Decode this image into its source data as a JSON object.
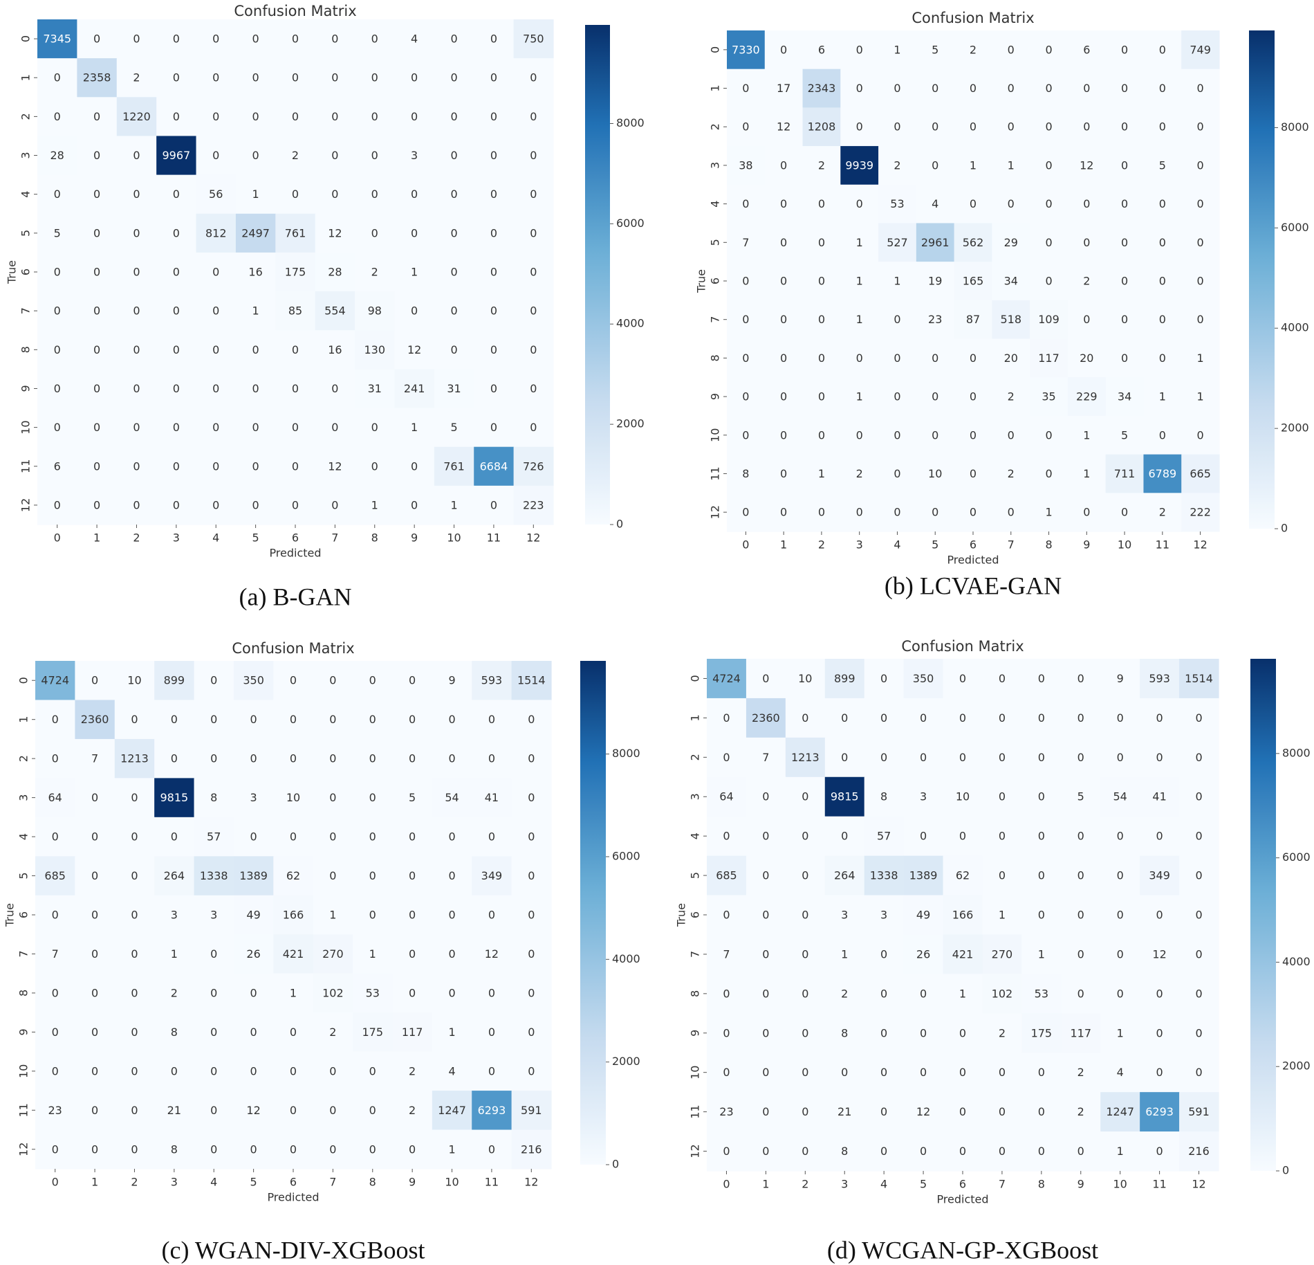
{
  "colors": {
    "low": "#f7fbff",
    "mid1": "#c6dbef",
    "mid2": "#6baed6",
    "mid3": "#2171b5",
    "high": "#08306b",
    "text_dark": "#333333",
    "text_light": "#ffffff"
  },
  "chart_data": [
    {
      "type": "heatmap",
      "caption": "(a) B-GAN",
      "title": "Confusion Matrix",
      "xlabel": "Predicted",
      "ylabel": "True",
      "labels": [
        "0",
        "1",
        "2",
        "3",
        "4",
        "5",
        "6",
        "7",
        "8",
        "9",
        "10",
        "11",
        "12"
      ],
      "vmin": 0,
      "vmax": 9967,
      "colorbar_ticks": [
        0,
        2000,
        4000,
        6000,
        8000
      ],
      "colorbar_tick_labels": [
        "0",
        "2000",
        "4000",
        "6000",
        "8000"
      ],
      "matrix": [
        [
          7345,
          0,
          0,
          0,
          0,
          0,
          0,
          0,
          0,
          4,
          0,
          0,
          750
        ],
        [
          0,
          2358,
          2,
          0,
          0,
          0,
          0,
          0,
          0,
          0,
          0,
          0,
          0
        ],
        [
          0,
          0,
          1220,
          0,
          0,
          0,
          0,
          0,
          0,
          0,
          0,
          0,
          0
        ],
        [
          28,
          0,
          0,
          9967,
          0,
          0,
          2,
          0,
          0,
          3,
          0,
          0,
          0
        ],
        [
          0,
          0,
          0,
          0,
          56,
          1,
          0,
          0,
          0,
          0,
          0,
          0,
          0
        ],
        [
          5,
          0,
          0,
          0,
          812,
          2497,
          761,
          12,
          0,
          0,
          0,
          0,
          0
        ],
        [
          0,
          0,
          0,
          0,
          0,
          16,
          175,
          28,
          2,
          1,
          0,
          0,
          0
        ],
        [
          0,
          0,
          0,
          0,
          0,
          1,
          85,
          554,
          98,
          0,
          0,
          0,
          0
        ],
        [
          0,
          0,
          0,
          0,
          0,
          0,
          0,
          16,
          130,
          12,
          0,
          0,
          0
        ],
        [
          0,
          0,
          0,
          0,
          0,
          0,
          0,
          0,
          31,
          241,
          31,
          0,
          0
        ],
        [
          0,
          0,
          0,
          0,
          0,
          0,
          0,
          0,
          0,
          1,
          5,
          0,
          0
        ],
        [
          6,
          0,
          0,
          0,
          0,
          0,
          0,
          12,
          0,
          0,
          761,
          6684,
          726
        ],
        [
          0,
          0,
          0,
          0,
          0,
          0,
          0,
          0,
          1,
          0,
          1,
          0,
          223
        ]
      ]
    },
    {
      "type": "heatmap",
      "caption": "(b) LCVAE-GAN",
      "title": "Confusion Matrix",
      "xlabel": "Predicted",
      "ylabel": "True",
      "labels": [
        "0",
        "1",
        "2",
        "3",
        "4",
        "5",
        "6",
        "7",
        "8",
        "9",
        "10",
        "11",
        "12"
      ],
      "vmin": 0,
      "vmax": 9939,
      "colorbar_ticks": [
        0,
        2000,
        4000,
        6000,
        8000
      ],
      "colorbar_tick_labels": [
        "0",
        "2000",
        "4000",
        "6000",
        "8000"
      ],
      "matrix": [
        [
          7330,
          0,
          6,
          0,
          1,
          5,
          2,
          0,
          0,
          6,
          0,
          0,
          749
        ],
        [
          0,
          17,
          2343,
          0,
          0,
          0,
          0,
          0,
          0,
          0,
          0,
          0,
          0
        ],
        [
          0,
          12,
          1208,
          0,
          0,
          0,
          0,
          0,
          0,
          0,
          0,
          0,
          0
        ],
        [
          38,
          0,
          2,
          9939,
          2,
          0,
          1,
          1,
          0,
          12,
          0,
          5,
          0
        ],
        [
          0,
          0,
          0,
          0,
          53,
          4,
          0,
          0,
          0,
          0,
          0,
          0,
          0
        ],
        [
          7,
          0,
          0,
          1,
          527,
          2961,
          562,
          29,
          0,
          0,
          0,
          0,
          0
        ],
        [
          0,
          0,
          0,
          1,
          1,
          19,
          165,
          34,
          0,
          2,
          0,
          0,
          0
        ],
        [
          0,
          0,
          0,
          1,
          0,
          23,
          87,
          518,
          109,
          0,
          0,
          0,
          0
        ],
        [
          0,
          0,
          0,
          0,
          0,
          0,
          0,
          20,
          117,
          20,
          0,
          0,
          1
        ],
        [
          0,
          0,
          0,
          1,
          0,
          0,
          0,
          2,
          35,
          229,
          34,
          1,
          1
        ],
        [
          0,
          0,
          0,
          0,
          0,
          0,
          0,
          0,
          0,
          1,
          5,
          0,
          0
        ],
        [
          8,
          0,
          1,
          2,
          0,
          10,
          0,
          2,
          0,
          1,
          711,
          6789,
          665
        ],
        [
          0,
          0,
          0,
          0,
          0,
          0,
          0,
          0,
          1,
          0,
          0,
          2,
          222
        ]
      ]
    },
    {
      "type": "heatmap",
      "caption": "(c) WGAN-DIV-XGBoost",
      "title": "Confusion Matrix",
      "xlabel": "Predicted",
      "ylabel": "True",
      "labels": [
        "0",
        "1",
        "2",
        "3",
        "4",
        "5",
        "6",
        "7",
        "8",
        "9",
        "10",
        "11",
        "12"
      ],
      "vmin": 0,
      "vmax": 9815,
      "colorbar_ticks": [
        0,
        2000,
        4000,
        6000,
        8000
      ],
      "colorbar_tick_labels": [
        "0",
        "2000",
        "4000",
        "6000",
        "8000"
      ],
      "matrix": [
        [
          4724,
          0,
          10,
          899,
          0,
          350,
          0,
          0,
          0,
          0,
          9,
          593,
          1514
        ],
        [
          0,
          2360,
          0,
          0,
          0,
          0,
          0,
          0,
          0,
          0,
          0,
          0,
          0
        ],
        [
          0,
          7,
          1213,
          0,
          0,
          0,
          0,
          0,
          0,
          0,
          0,
          0,
          0
        ],
        [
          64,
          0,
          0,
          9815,
          8,
          3,
          10,
          0,
          0,
          5,
          54,
          41,
          0
        ],
        [
          0,
          0,
          0,
          0,
          57,
          0,
          0,
          0,
          0,
          0,
          0,
          0,
          0
        ],
        [
          685,
          0,
          0,
          264,
          1338,
          1389,
          62,
          0,
          0,
          0,
          0,
          349,
          0
        ],
        [
          0,
          0,
          0,
          3,
          3,
          49,
          166,
          1,
          0,
          0,
          0,
          0,
          0
        ],
        [
          7,
          0,
          0,
          1,
          0,
          26,
          421,
          270,
          1,
          0,
          0,
          12,
          0
        ],
        [
          0,
          0,
          0,
          2,
          0,
          0,
          1,
          102,
          53,
          0,
          0,
          0,
          0
        ],
        [
          0,
          0,
          0,
          8,
          0,
          0,
          0,
          2,
          175,
          117,
          1,
          0,
          0
        ],
        [
          0,
          0,
          0,
          0,
          0,
          0,
          0,
          0,
          0,
          2,
          4,
          0,
          0
        ],
        [
          23,
          0,
          0,
          21,
          0,
          12,
          0,
          0,
          0,
          2,
          1247,
          6293,
          591
        ],
        [
          0,
          0,
          0,
          8,
          0,
          0,
          0,
          0,
          0,
          0,
          1,
          0,
          216
        ]
      ]
    },
    {
      "type": "heatmap",
      "caption": "(d) WCGAN-GP-XGBoost",
      "title": "Confusion Matrix",
      "xlabel": "Predicted",
      "ylabel": "True",
      "labels": [
        "0",
        "1",
        "2",
        "3",
        "4",
        "5",
        "6",
        "7",
        "8",
        "9",
        "10",
        "11",
        "12"
      ],
      "vmin": 0,
      "vmax": 9815,
      "colorbar_ticks": [
        0,
        2000,
        4000,
        6000,
        8000
      ],
      "colorbar_tick_labels": [
        "0",
        "2000",
        "4000",
        "6000",
        "8000"
      ],
      "matrix": [
        [
          4724,
          0,
          10,
          899,
          0,
          350,
          0,
          0,
          0,
          0,
          9,
          593,
          1514
        ],
        [
          0,
          2360,
          0,
          0,
          0,
          0,
          0,
          0,
          0,
          0,
          0,
          0,
          0
        ],
        [
          0,
          7,
          1213,
          0,
          0,
          0,
          0,
          0,
          0,
          0,
          0,
          0,
          0
        ],
        [
          64,
          0,
          0,
          9815,
          8,
          3,
          10,
          0,
          0,
          5,
          54,
          41,
          0
        ],
        [
          0,
          0,
          0,
          0,
          57,
          0,
          0,
          0,
          0,
          0,
          0,
          0,
          0
        ],
        [
          685,
          0,
          0,
          264,
          1338,
          1389,
          62,
          0,
          0,
          0,
          0,
          349,
          0
        ],
        [
          0,
          0,
          0,
          3,
          3,
          49,
          166,
          1,
          0,
          0,
          0,
          0,
          0
        ],
        [
          7,
          0,
          0,
          1,
          0,
          26,
          421,
          270,
          1,
          0,
          0,
          12,
          0
        ],
        [
          0,
          0,
          0,
          2,
          0,
          0,
          1,
          102,
          53,
          0,
          0,
          0,
          0
        ],
        [
          0,
          0,
          0,
          8,
          0,
          0,
          0,
          2,
          175,
          117,
          1,
          0,
          0
        ],
        [
          0,
          0,
          0,
          0,
          0,
          0,
          0,
          0,
          0,
          2,
          4,
          0,
          0
        ],
        [
          23,
          0,
          0,
          21,
          0,
          12,
          0,
          0,
          0,
          2,
          1247,
          6293,
          591
        ],
        [
          0,
          0,
          0,
          8,
          0,
          0,
          0,
          0,
          0,
          0,
          1,
          0,
          216
        ]
      ]
    }
  ]
}
